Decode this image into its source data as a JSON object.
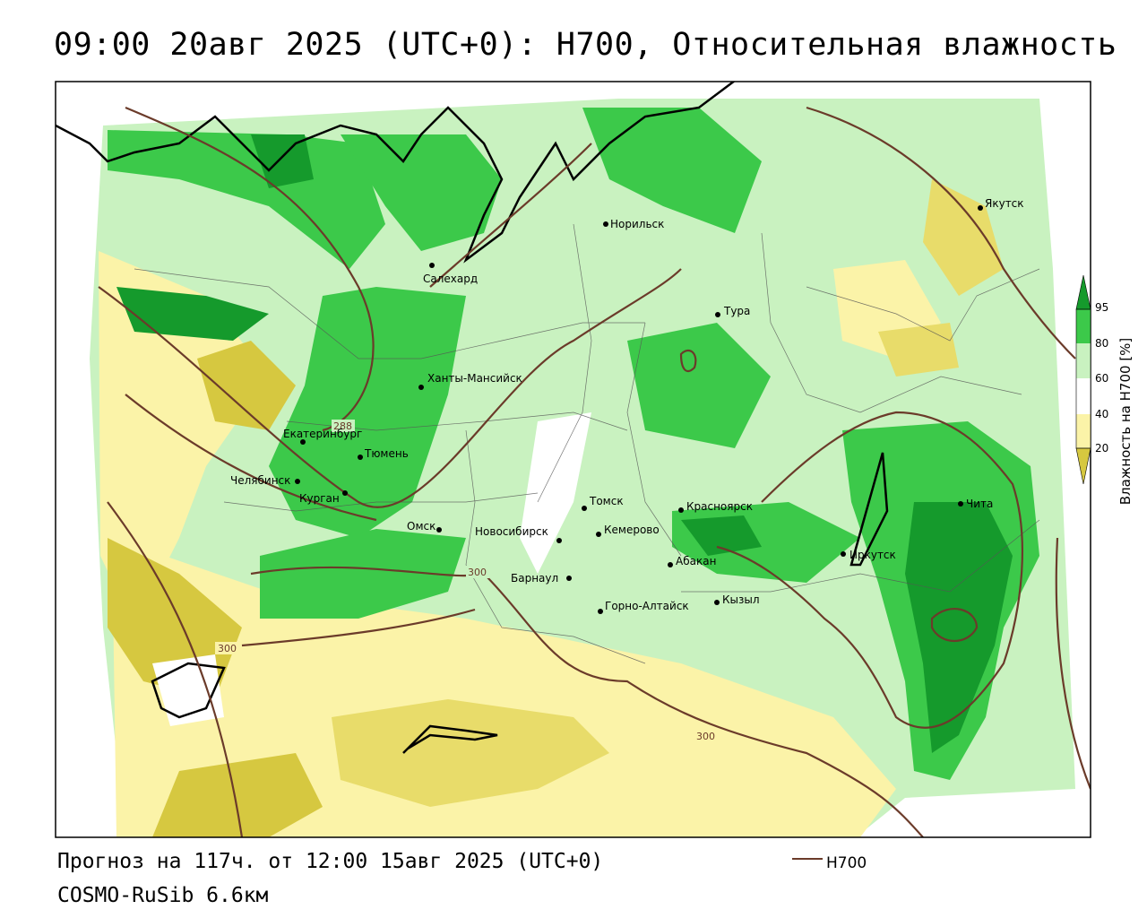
{
  "title": "09:00 20авг 2025 (UTC+0): H700, Относительная влажность",
  "forecast_line": "Прогноз на 117ч. от 12:00 15авг 2025 (UTC+0)",
  "model_line": "COSMO-RuSib 6.6км",
  "legend": {
    "line_label": "H700",
    "line_color": "#6b3b2a"
  },
  "colorbar": {
    "title": "Влажность на H700 [%]",
    "ticks": [
      "95",
      "80",
      "60",
      "40",
      "20"
    ],
    "colors": {
      "very_dry": "#d6c840",
      "dry": "#fbf3a8",
      "neutral": "#ffffff",
      "moist": "#c9f2c0",
      "wet": "#3cc94a",
      "saturated": "#159a2c"
    }
  },
  "contour_labels": [
    "288",
    "300",
    "300",
    "300"
  ],
  "cities": [
    "Якутск",
    "Норильск",
    "Салехард",
    "Тура",
    "Ханты-Мансийск",
    "Екатеринбург",
    "Тюмень",
    "Челябинск",
    "Курган",
    "Омск",
    "Новосибирск",
    "Томск",
    "Кемерово",
    "Красноярск",
    "Абакан",
    "Барнаул",
    "Горно-Алтайск",
    "Кызыл",
    "Иркутск",
    "Чита"
  ]
}
